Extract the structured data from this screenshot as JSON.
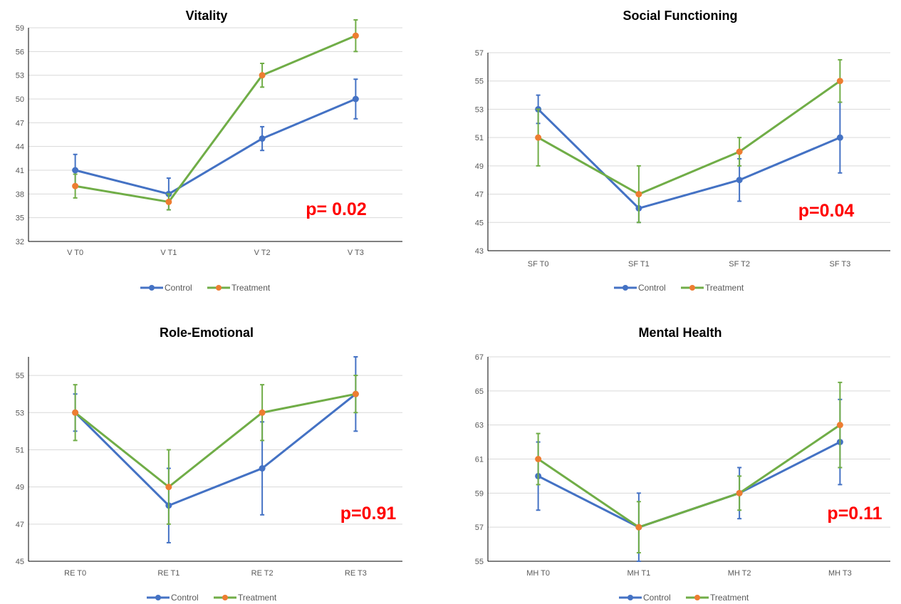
{
  "colors": {
    "control": "#4472c4",
    "treatment": "#70ad47",
    "treatment_marker": "#ed7d31",
    "pvalue": "#ff0000",
    "grid": "#d9d9d9",
    "axis": "#000000"
  },
  "chart_data": [
    {
      "type": "line",
      "title": "Vitality",
      "categories": [
        "V T0",
        "V T1",
        "V T2",
        "V T3"
      ],
      "ylim": [
        32,
        59
      ],
      "yticks": [
        32,
        35,
        38,
        41,
        44,
        47,
        50,
        53,
        56,
        59
      ],
      "yticks_label": [
        "32",
        "35",
        "38",
        "41",
        "44",
        "47",
        "50",
        "53",
        "56",
        "59"
      ],
      "grid": true,
      "legend_position": "bottom",
      "annotation": "p= 0.02",
      "series": [
        {
          "name": "Control",
          "values": [
            41,
            38,
            45,
            50
          ],
          "err_low": [
            39,
            36,
            43.5,
            47.5
          ],
          "err_high": [
            43,
            40,
            46.5,
            52.5
          ]
        },
        {
          "name": "Treatment",
          "values": [
            39,
            37,
            53,
            58
          ],
          "err_low": [
            37.5,
            36,
            51.5,
            56
          ],
          "err_high": [
            40.5,
            38,
            54.5,
            60
          ]
        }
      ]
    },
    {
      "type": "line",
      "title": "Social Functioning",
      "categories": [
        "SF T0",
        "SF T1",
        "SF T2",
        "SF T3"
      ],
      "ylim": [
        43,
        57
      ],
      "yticks": [
        43,
        45,
        47,
        49,
        51,
        53,
        55,
        57
      ],
      "yticks_label": [
        "43",
        "45",
        "47",
        "49",
        "51",
        "53",
        "55",
        "57"
      ],
      "grid": true,
      "legend_position": "bottom",
      "annotation": "p=0.04",
      "series": [
        {
          "name": "Control",
          "values": [
            53,
            46,
            48,
            51
          ],
          "err_low": [
            52,
            45,
            46.5,
            48.5
          ],
          "err_high": [
            54,
            47,
            49.5,
            53.5
          ]
        },
        {
          "name": "Treatment",
          "values": [
            51,
            47,
            50,
            55
          ],
          "err_low": [
            49,
            45,
            49,
            53.5
          ],
          "err_high": [
            53,
            49,
            51,
            56.5
          ]
        }
      ]
    },
    {
      "type": "line",
      "title": "Role-Emotional",
      "categories": [
        "RE T0",
        "RE T1",
        "RE T2",
        "RE T3"
      ],
      "ylim": [
        45,
        56
      ],
      "yticks": [
        45,
        47,
        49,
        51,
        53,
        55
      ],
      "yticks_label": [
        "45",
        "47",
        "49",
        "51",
        "53",
        "55"
      ],
      "grid": true,
      "legend_position": "bottom",
      "annotation": "p=0.91",
      "series": [
        {
          "name": "Control",
          "values": [
            53,
            48,
            50,
            54
          ],
          "err_low": [
            52,
            46,
            47.5,
            52
          ],
          "err_high": [
            54,
            50,
            52.5,
            56
          ]
        },
        {
          "name": "Treatment",
          "values": [
            53,
            49,
            53,
            54
          ],
          "err_low": [
            51.5,
            47,
            51.5,
            53
          ],
          "err_high": [
            54.5,
            51,
            54.5,
            55
          ]
        }
      ]
    },
    {
      "type": "line",
      "title": "Mental Health",
      "categories": [
        "MH T0",
        "MH T1",
        "MH T2",
        "MH T3"
      ],
      "ylim": [
        55,
        67
      ],
      "yticks": [
        55,
        57,
        59,
        61,
        63,
        65,
        67
      ],
      "yticks_label": [
        "55",
        "57",
        "59",
        "61",
        "63",
        "65",
        "67"
      ],
      "grid": true,
      "legend_position": "bottom",
      "annotation": "p=0.11",
      "series": [
        {
          "name": "Control",
          "values": [
            60,
            57,
            59,
            62
          ],
          "err_low": [
            58,
            55,
            57.5,
            59.5
          ],
          "err_high": [
            62,
            59,
            60.5,
            64.5
          ]
        },
        {
          "name": "Treatment",
          "values": [
            61,
            57,
            59,
            63
          ],
          "err_low": [
            59.5,
            55.5,
            58,
            60.5
          ],
          "err_high": [
            62.5,
            58.5,
            60,
            65.5
          ]
        }
      ]
    }
  ]
}
